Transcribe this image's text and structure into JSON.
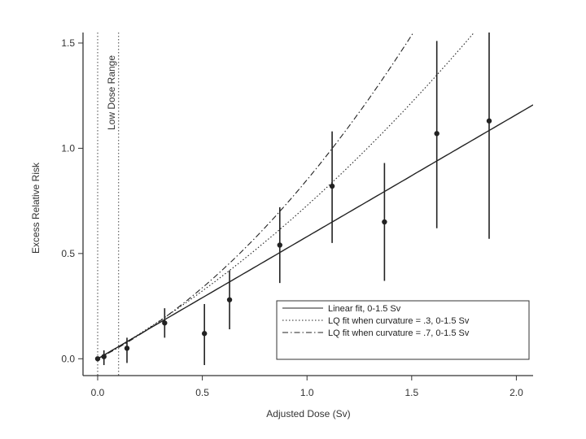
{
  "chart_data": {
    "type": "scatter",
    "xlabel": "Adjusted Dose (Sv)",
    "ylabel": "Excess Relative Risk",
    "xlim": [
      -0.07,
      2.08
    ],
    "ylim": [
      -0.08,
      1.55
    ],
    "x_ticks": [
      0.0,
      0.5,
      1.0,
      1.5,
      2.0
    ],
    "x_tick_labels": [
      "0.0",
      "0.5",
      "1.0",
      "1.5",
      "2.0"
    ],
    "y_ticks": [
      0.0,
      0.5,
      1.0,
      1.5
    ],
    "y_tick_labels": [
      "0.0",
      "0.5",
      "1.0",
      "1.5"
    ],
    "grid": false,
    "legend_position": "bottom-right",
    "reference_lines": [
      {
        "x": 0.0,
        "style": "dotted"
      },
      {
        "x": 0.1,
        "style": "dotted"
      }
    ],
    "annotation": "Low Dose Range",
    "points": [
      {
        "x": 0.0,
        "y": 0.0,
        "low": null,
        "high": null
      },
      {
        "x": 0.03,
        "y": 0.01,
        "low": -0.03,
        "high": 0.04
      },
      {
        "x": 0.14,
        "y": 0.05,
        "low": -0.02,
        "high": 0.1
      },
      {
        "x": 0.32,
        "y": 0.17,
        "low": 0.1,
        "high": 0.24
      },
      {
        "x": 0.51,
        "y": 0.12,
        "low": -0.03,
        "high": 0.26
      },
      {
        "x": 0.63,
        "y": 0.28,
        "low": 0.14,
        "high": 0.42
      },
      {
        "x": 0.87,
        "y": 0.54,
        "low": 0.36,
        "high": 0.72
      },
      {
        "x": 1.12,
        "y": 0.82,
        "low": 0.55,
        "high": 1.08
      },
      {
        "x": 1.37,
        "y": 0.65,
        "low": 0.37,
        "high": 0.93
      },
      {
        "x": 1.62,
        "y": 1.07,
        "low": 0.62,
        "high": 1.51
      },
      {
        "x": 1.87,
        "y": 1.13,
        "low": 0.57,
        "high": 1.55
      }
    ],
    "series": [
      {
        "name": "Linear fit, 0-1.5 Sv",
        "style": "solid",
        "model": "linear",
        "slope": 0.58,
        "curvature": 0
      },
      {
        "name": "LQ fit when curvature = .3, 0-1.5 Sv",
        "style": "dotted",
        "model": "lq",
        "slope": 0.56,
        "curvature": 0.3
      },
      {
        "name": "LQ fit when curvature = .7, 0-1.5 Sv",
        "style": "dashdot",
        "model": "lq",
        "slope": 0.5,
        "curvature": 0.7
      }
    ]
  }
}
